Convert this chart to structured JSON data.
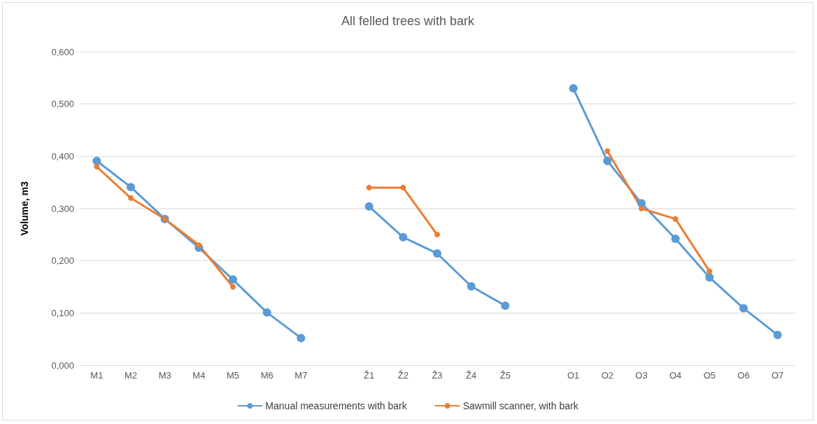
{
  "chart_data": {
    "type": "line",
    "title": "All felled trees with bark",
    "ylabel": "Volume, m3",
    "categories": [
      "M1",
      "M2",
      "M3",
      "M4",
      "M5",
      "M6",
      "M7",
      null,
      "Ž1",
      "Ž2",
      "Ž3",
      "Ž4",
      "Ž5",
      null,
      "O1",
      "O2",
      "O3",
      "O4",
      "O5",
      "O6",
      "O7"
    ],
    "series": [
      {
        "name": "Manual measurements with bark",
        "color": "#5b9bd5",
        "values": [
          0.391,
          0.341,
          0.28,
          0.225,
          0.164,
          0.101,
          0.052,
          null,
          0.304,
          0.245,
          0.214,
          0.151,
          0.114,
          null,
          0.53,
          0.391,
          0.31,
          0.242,
          0.168,
          0.109,
          0.058
        ]
      },
      {
        "name": "Sawmill scanner, with bark",
        "color": "#ed7d31",
        "values": [
          0.38,
          0.32,
          0.28,
          0.23,
          0.15,
          null,
          null,
          null,
          0.34,
          0.34,
          0.25,
          null,
          null,
          null,
          null,
          0.41,
          0.3,
          0.28,
          0.18,
          null,
          null
        ]
      }
    ],
    "ylim": [
      0,
      0.6
    ],
    "yticks": [
      {
        "value": 0,
        "label": "0,000"
      },
      {
        "value": 0.1,
        "label": "0,100"
      },
      {
        "value": 0.2,
        "label": "0,200"
      },
      {
        "value": 0.3,
        "label": "0,300"
      },
      {
        "value": 0.4,
        "label": "0,400"
      },
      {
        "value": 0.5,
        "label": "0,500"
      },
      {
        "value": 0.6,
        "label": "0,600"
      }
    ],
    "grid": "y",
    "legend": "bottom",
    "marker": "circle",
    "line_style": "solid"
  }
}
